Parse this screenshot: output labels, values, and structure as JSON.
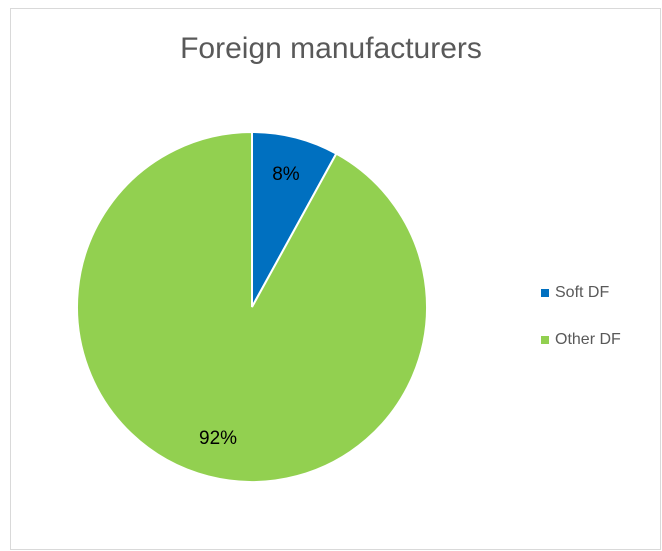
{
  "chart_data": {
    "type": "pie",
    "title": "Foreign manufacturers",
    "categories": [
      "Soft DF",
      "Other DF"
    ],
    "values": [
      8,
      92
    ],
    "value_labels": [
      "8%",
      "92%"
    ],
    "colors": [
      "#0070c0",
      "#92d050"
    ],
    "legend": "right"
  }
}
